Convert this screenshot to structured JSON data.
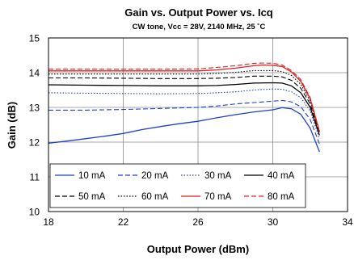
{
  "chart_data": {
    "type": "line",
    "title": "Gain vs. Output Power vs. Icq",
    "subtitle": "CW tone, Vcc = 28V, 2140 MHz, 25 ˚C",
    "xlabel": "Output Power (dBm)",
    "ylabel": "Gain (dB)",
    "xlim": [
      18,
      34
    ],
    "ylim": [
      10,
      15
    ],
    "xticks": [
      18,
      22,
      26,
      30,
      34
    ],
    "yticks": [
      10,
      11,
      12,
      13,
      14,
      15
    ],
    "grid": true,
    "legend_position": "lower-left, inside plot",
    "series": [
      {
        "name": "10 mA",
        "color": "#1f3fd0",
        "dash": "solid",
        "x": [
          18,
          19,
          20,
          21,
          22,
          23,
          24,
          25,
          26,
          27,
          28,
          29,
          30,
          30.5,
          31,
          31.5,
          32,
          32.5
        ],
        "y": [
          11.97,
          12.03,
          12.1,
          12.17,
          12.25,
          12.36,
          12.45,
          12.53,
          12.6,
          12.7,
          12.79,
          12.87,
          12.93,
          12.99,
          12.96,
          12.8,
          12.4,
          11.72
        ]
      },
      {
        "name": "20 mA",
        "color": "#1f3fd0",
        "dash": "dash",
        "x": [
          18,
          20,
          22,
          24,
          26,
          27,
          28,
          29,
          30,
          30.5,
          31,
          31.5,
          32,
          32.5
        ],
        "y": [
          12.92,
          12.92,
          12.94,
          12.97,
          13.0,
          13.04,
          13.1,
          13.14,
          13.18,
          13.2,
          13.16,
          13.02,
          12.65,
          11.95
        ]
      },
      {
        "name": "30 mA",
        "color": "#1f3fd0",
        "dash": "dot",
        "x": [
          18,
          20,
          22,
          24,
          26,
          27,
          28,
          29,
          30,
          30.5,
          31,
          31.5,
          32,
          32.5
        ],
        "y": [
          13.42,
          13.41,
          13.4,
          13.39,
          13.4,
          13.42,
          13.45,
          13.5,
          13.53,
          13.52,
          13.45,
          13.28,
          12.9,
          12.1
        ]
      },
      {
        "name": "40 mA",
        "color": "#000000",
        "dash": "solid",
        "x": [
          18,
          20,
          22,
          24,
          26,
          27,
          28,
          29,
          30,
          30.5,
          31,
          31.5,
          32,
          32.5
        ],
        "y": [
          13.65,
          13.64,
          13.63,
          13.62,
          13.62,
          13.63,
          13.66,
          13.7,
          13.71,
          13.7,
          13.62,
          13.42,
          13.0,
          12.2
        ]
      },
      {
        "name": "50 mA",
        "color": "#000000",
        "dash": "dash",
        "x": [
          18,
          20,
          22,
          24,
          26,
          27,
          28,
          29,
          30,
          30.5,
          31,
          31.5,
          32,
          32.5
        ],
        "y": [
          13.85,
          13.85,
          13.84,
          13.83,
          13.83,
          13.84,
          13.86,
          13.9,
          13.9,
          13.88,
          13.78,
          13.55,
          13.1,
          12.25
        ]
      },
      {
        "name": "60 mA",
        "color": "#000000",
        "dash": "dot",
        "x": [
          18,
          20,
          22,
          24,
          26,
          27,
          28,
          29,
          30,
          30.5,
          31,
          31.5,
          32,
          32.5
        ],
        "y": [
          13.96,
          13.96,
          13.96,
          13.96,
          13.96,
          13.98,
          14.01,
          14.06,
          14.06,
          14.03,
          13.92,
          13.66,
          13.18,
          12.28
        ]
      },
      {
        "name": "70 mA",
        "color": "#e02020",
        "dash": "solid",
        "x": [
          18,
          20,
          22,
          24,
          26,
          27,
          28,
          29,
          29.5,
          30,
          30.5,
          31,
          31.5,
          32,
          32.5
        ],
        "y": [
          14.05,
          14.05,
          14.05,
          14.05,
          14.05,
          14.08,
          14.13,
          14.2,
          14.22,
          14.21,
          14.18,
          14.02,
          13.75,
          13.25,
          12.3
        ]
      },
      {
        "name": "80 mA",
        "color": "#e02020",
        "dash": "dash",
        "x": [
          18,
          20,
          22,
          24,
          26,
          27,
          28,
          29,
          29.5,
          30,
          30.5,
          31,
          31.5,
          32,
          32.5
        ],
        "y": [
          14.1,
          14.1,
          14.1,
          14.1,
          14.11,
          14.15,
          14.2,
          14.27,
          14.28,
          14.27,
          14.22,
          14.06,
          13.8,
          13.28,
          12.32
        ]
      }
    ]
  }
}
